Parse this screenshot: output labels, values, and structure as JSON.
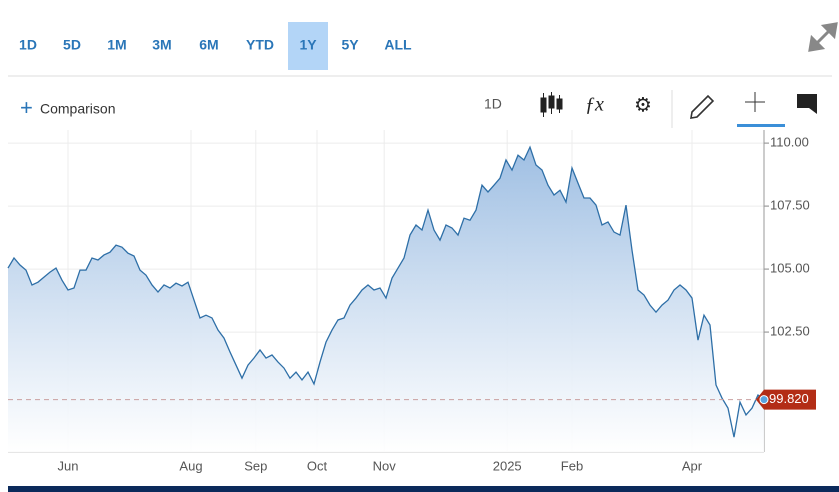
{
  "toolbar": {
    "ranges": [
      "1D",
      "5D",
      "1M",
      "3M",
      "6M",
      "YTD",
      "1Y",
      "5Y",
      "ALL"
    ],
    "active_range": "1Y",
    "comparison": "Comparison",
    "interval": "1D"
  },
  "chart_data": {
    "type": "area",
    "color": "#2e6fa7",
    "grid": true,
    "values": [
      105.04,
      105.44,
      105.16,
      104.96,
      104.37,
      104.48,
      104.68,
      104.88,
      105.04,
      104.56,
      104.17,
      104.25,
      104.96,
      104.96,
      105.44,
      105.36,
      105.56,
      105.67,
      105.95,
      105.87,
      105.63,
      105.52,
      104.96,
      104.76,
      104.37,
      104.09,
      104.37,
      104.25,
      104.44,
      104.33,
      104.48,
      103.77,
      103.06,
      103.17,
      103.06,
      102.58,
      102.26,
      101.71,
      101.19,
      100.67,
      101.19,
      101.47,
      101.79,
      101.47,
      101.59,
      101.31,
      101.07,
      100.67,
      100.91,
      100.6,
      100.91,
      100.44,
      101.31,
      102.1,
      102.58,
      102.98,
      103.06,
      103.57,
      103.85,
      104.17,
      104.37,
      104.17,
      104.25,
      103.85,
      104.64,
      105.04,
      105.44,
      106.35,
      106.75,
      106.55,
      107.34,
      106.55,
      106.15,
      106.75,
      106.63,
      106.35,
      107.02,
      106.94,
      107.34,
      108.33,
      108.06,
      108.33,
      108.61,
      109.33,
      108.93,
      109.52,
      109.33,
      109.84,
      109.13,
      108.93,
      108.33,
      107.94,
      108.13,
      107.66,
      109.01,
      108.41,
      107.82,
      107.82,
      107.54,
      106.75,
      106.87,
      106.47,
      106.35,
      107.54,
      105.75,
      104.17,
      103.97,
      103.57,
      103.29,
      103.57,
      103.77,
      104.17,
      104.37,
      104.17,
      103.85,
      102.18,
      103.17,
      102.78,
      100.4,
      99.88,
      99.48,
      98.33,
      99.72,
      99.21,
      99.48,
      100.0,
      99.82
    ],
    "xlim": [
      0,
      126
    ],
    "xticks": [
      {
        "value": 10,
        "label": "Jun"
      },
      {
        "value": 30.5,
        "label": "Aug"
      },
      {
        "value": 41.3,
        "label": "Sep"
      },
      {
        "value": 51.5,
        "label": "Oct"
      },
      {
        "value": 62.7,
        "label": "Nov"
      },
      {
        "value": 83.2,
        "label": "2025"
      },
      {
        "value": 94,
        "label": "Feb"
      },
      {
        "value": 114,
        "label": "Apr"
      }
    ],
    "ylim": [
      97.74,
      110.52
    ],
    "yticks": [
      {
        "value": 102.5,
        "label": "102.50"
      },
      {
        "value": 105,
        "label": "105.00"
      },
      {
        "value": 107.5,
        "label": "107.50"
      },
      {
        "value": 110,
        "label": "110.00"
      }
    ],
    "last_value": {
      "value": 99.82,
      "label": "99.820"
    }
  }
}
